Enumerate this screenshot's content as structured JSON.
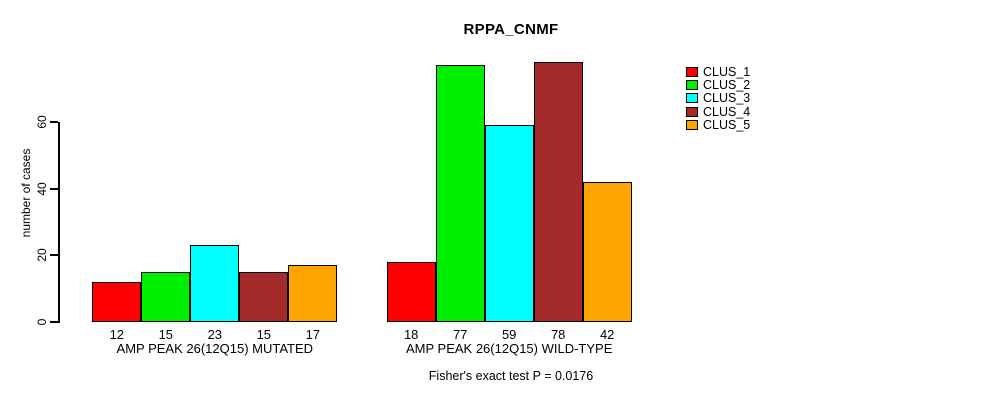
{
  "chart_data": {
    "type": "bar",
    "title": "RPPA_CNMF",
    "ylabel": "number of cases",
    "xlabel": "",
    "ylim": [
      0,
      80
    ],
    "yticks": [
      0,
      20,
      40,
      60
    ],
    "grid": false,
    "legend_position": "right",
    "categories": [
      "AMP PEAK 26(12Q15) MUTATED",
      "AMP PEAK 26(12Q15) WILD-TYPE"
    ],
    "series": [
      {
        "name": "CLUS_1",
        "color": "#ff0000",
        "values": [
          12,
          18
        ]
      },
      {
        "name": "CLUS_2",
        "color": "#00ee00",
        "values": [
          15,
          77
        ]
      },
      {
        "name": "CLUS_3",
        "color": "#00ffff",
        "values": [
          23,
          59
        ]
      },
      {
        "name": "CLUS_4",
        "color": "#a52a2a",
        "values": [
          15,
          78
        ]
      },
      {
        "name": "CLUS_5",
        "color": "#ffa500",
        "values": [
          17,
          42
        ]
      }
    ],
    "annotation": "Fisher's exact test P = 0.0176"
  }
}
